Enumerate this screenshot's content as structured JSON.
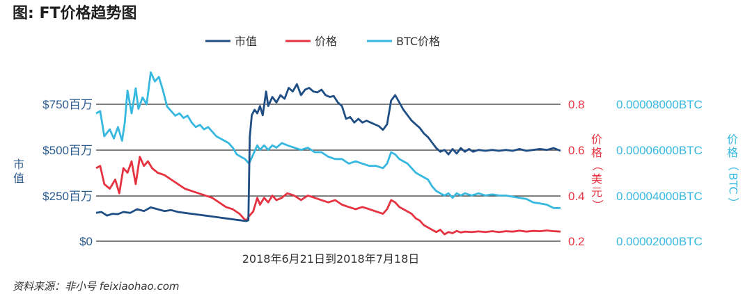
{
  "chart_data": {
    "type": "line",
    "title": "图: FT价格趋势图",
    "xlabel": "2018年6月21日到2018年7月18日",
    "x_range": [
      "2018-06-21",
      "2018-07-18"
    ],
    "grid": true,
    "legend_position": "top",
    "axes": {
      "left": {
        "label": "市值",
        "ylim": [
          0,
          750
        ],
        "ticks": [
          0,
          250,
          500,
          750
        ],
        "tick_labels": [
          "$0",
          "$250百万",
          "$500百万",
          "$750百万"
        ],
        "color": "#2b5c8f"
      },
      "middle": {
        "label": "价格（美元）",
        "label_chars": [
          "价",
          "格",
          "（",
          "美",
          "元",
          "）"
        ],
        "ylim": [
          0.2,
          0.8
        ],
        "ticks": [
          0.2,
          0.4,
          0.6,
          0.8
        ],
        "tick_labels": [
          "0.2",
          "0.4",
          "0.6",
          "0.8"
        ],
        "color": "#e63341"
      },
      "right": {
        "label": "价格（BTC）",
        "label_chars": [
          "价",
          "格",
          "（",
          "BTC",
          "）"
        ],
        "ylim": [
          2e-05,
          8e-05
        ],
        "ticks": [
          2e-05,
          4e-05,
          6e-05,
          8e-05
        ],
        "tick_labels": [
          "0.00002000BTC",
          "0.00004000BTC",
          "0.00006000BTC",
          "0.00008000BTC"
        ],
        "color": "#37b8e0"
      }
    },
    "series": [
      {
        "name": "市值",
        "axis": "left",
        "color": "#1f4e85",
        "points": [
          [
            0,
            155
          ],
          [
            0.4,
            160
          ],
          [
            0.8,
            140
          ],
          [
            1.2,
            150
          ],
          [
            1.6,
            148
          ],
          [
            2.0,
            160
          ],
          [
            2.5,
            155
          ],
          [
            3.0,
            175
          ],
          [
            3.5,
            165
          ],
          [
            4.0,
            185
          ],
          [
            4.5,
            175
          ],
          [
            5.0,
            165
          ],
          [
            5.5,
            170
          ],
          [
            6.0,
            160
          ],
          [
            6.5,
            155
          ],
          [
            7.0,
            150
          ],
          [
            7.5,
            145
          ],
          [
            8.0,
            140
          ],
          [
            8.5,
            135
          ],
          [
            9.0,
            130
          ],
          [
            9.5,
            125
          ],
          [
            10.0,
            120
          ],
          [
            10.5,
            115
          ],
          [
            11.0,
            110
          ],
          [
            11.15,
            115
          ],
          [
            11.25,
            570
          ],
          [
            11.4,
            690
          ],
          [
            11.6,
            720
          ],
          [
            11.8,
            700
          ],
          [
            12.0,
            740
          ],
          [
            12.2,
            690
          ],
          [
            12.45,
            820
          ],
          [
            12.6,
            740
          ],
          [
            12.9,
            790
          ],
          [
            13.2,
            760
          ],
          [
            13.5,
            800
          ],
          [
            13.8,
            780
          ],
          [
            14.1,
            840
          ],
          [
            14.4,
            820
          ],
          [
            14.7,
            860
          ],
          [
            15.0,
            800
          ],
          [
            15.3,
            830
          ],
          [
            15.6,
            840
          ],
          [
            15.9,
            820
          ],
          [
            16.2,
            815
          ],
          [
            16.5,
            830
          ],
          [
            16.8,
            800
          ],
          [
            17.1,
            790
          ],
          [
            17.4,
            795
          ],
          [
            17.7,
            760
          ],
          [
            18.0,
            740
          ],
          [
            18.3,
            670
          ],
          [
            18.6,
            680
          ],
          [
            18.9,
            650
          ],
          [
            19.2,
            670
          ],
          [
            19.5,
            650
          ],
          [
            19.8,
            660
          ],
          [
            20.1,
            650
          ],
          [
            20.4,
            640
          ],
          [
            20.7,
            630
          ],
          [
            21.0,
            610
          ],
          [
            21.3,
            640
          ],
          [
            21.6,
            770
          ],
          [
            21.9,
            800
          ],
          [
            22.2,
            760
          ],
          [
            22.5,
            720
          ],
          [
            22.8,
            690
          ],
          [
            23.1,
            660
          ],
          [
            23.4,
            640
          ],
          [
            23.7,
            620
          ],
          [
            24.0,
            590
          ],
          [
            24.3,
            570
          ],
          [
            24.6,
            540
          ],
          [
            24.9,
            510
          ],
          [
            25.2,
            490
          ],
          [
            25.5,
            500
          ],
          [
            25.8,
            475
          ],
          [
            26.1,
            505
          ],
          [
            26.4,
            480
          ],
          [
            26.7,
            510
          ],
          [
            27.0,
            490
          ],
          [
            27.3,
            505
          ],
          [
            27.6,
            490
          ],
          [
            28.0,
            500
          ],
          [
            28.5,
            495
          ],
          [
            29.0,
            500
          ],
          [
            29.5,
            495
          ],
          [
            30.0,
            500
          ],
          [
            30.5,
            495
          ],
          [
            31.0,
            505
          ],
          [
            31.5,
            495
          ],
          [
            32.0,
            500
          ],
          [
            32.5,
            505
          ],
          [
            33.0,
            500
          ],
          [
            33.5,
            510
          ],
          [
            34.0,
            495
          ]
        ]
      },
      {
        "name": "价格",
        "axis": "middle",
        "color": "#e63341",
        "points": [
          [
            0,
            0.52
          ],
          [
            0.3,
            0.53
          ],
          [
            0.6,
            0.45
          ],
          [
            1.0,
            0.43
          ],
          [
            1.4,
            0.47
          ],
          [
            1.7,
            0.41
          ],
          [
            2.0,
            0.52
          ],
          [
            2.3,
            0.5
          ],
          [
            2.6,
            0.55
          ],
          [
            2.9,
            0.45
          ],
          [
            3.2,
            0.57
          ],
          [
            3.5,
            0.53
          ],
          [
            3.8,
            0.55
          ],
          [
            4.1,
            0.52
          ],
          [
            4.5,
            0.5
          ],
          [
            5.0,
            0.49
          ],
          [
            5.5,
            0.47
          ],
          [
            6.0,
            0.45
          ],
          [
            6.5,
            0.43
          ],
          [
            7.0,
            0.42
          ],
          [
            7.5,
            0.41
          ],
          [
            8.0,
            0.4
          ],
          [
            8.5,
            0.39
          ],
          [
            9.0,
            0.37
          ],
          [
            9.5,
            0.35
          ],
          [
            10.0,
            0.34
          ],
          [
            10.5,
            0.32
          ],
          [
            10.8,
            0.3
          ],
          [
            11.0,
            0.29
          ],
          [
            11.2,
            0.31
          ],
          [
            11.5,
            0.33
          ],
          [
            11.8,
            0.39
          ],
          [
            12.0,
            0.36
          ],
          [
            12.3,
            0.39
          ],
          [
            12.6,
            0.37
          ],
          [
            12.9,
            0.4
          ],
          [
            13.2,
            0.38
          ],
          [
            13.6,
            0.39
          ],
          [
            14.0,
            0.41
          ],
          [
            14.5,
            0.4
          ],
          [
            15.0,
            0.38
          ],
          [
            15.5,
            0.4
          ],
          [
            16.0,
            0.39
          ],
          [
            16.5,
            0.38
          ],
          [
            17.0,
            0.37
          ],
          [
            17.5,
            0.38
          ],
          [
            18.0,
            0.36
          ],
          [
            18.5,
            0.35
          ],
          [
            19.0,
            0.34
          ],
          [
            19.5,
            0.35
          ],
          [
            20.0,
            0.34
          ],
          [
            20.5,
            0.33
          ],
          [
            21.0,
            0.32
          ],
          [
            21.3,
            0.34
          ],
          [
            21.6,
            0.38
          ],
          [
            21.9,
            0.37
          ],
          [
            22.2,
            0.35
          ],
          [
            22.5,
            0.34
          ],
          [
            22.8,
            0.33
          ],
          [
            23.1,
            0.32
          ],
          [
            23.4,
            0.3
          ],
          [
            23.7,
            0.29
          ],
          [
            24.0,
            0.27
          ],
          [
            24.3,
            0.26
          ],
          [
            24.6,
            0.25
          ],
          [
            24.9,
            0.24
          ],
          [
            25.2,
            0.25
          ],
          [
            25.5,
            0.23
          ],
          [
            25.8,
            0.24
          ],
          [
            26.1,
            0.235
          ],
          [
            26.4,
            0.245
          ],
          [
            26.7,
            0.238
          ],
          [
            27.0,
            0.242
          ],
          [
            27.5,
            0.24
          ],
          [
            28.0,
            0.243
          ],
          [
            28.5,
            0.24
          ],
          [
            29.0,
            0.244
          ],
          [
            29.5,
            0.24
          ],
          [
            30.0,
            0.244
          ],
          [
            30.5,
            0.242
          ],
          [
            31.0,
            0.246
          ],
          [
            31.5,
            0.242
          ],
          [
            32.0,
            0.245
          ],
          [
            32.5,
            0.244
          ],
          [
            33.0,
            0.247
          ],
          [
            33.5,
            0.244
          ],
          [
            34.0,
            0.242
          ]
        ]
      },
      {
        "name": "BTC价格",
        "axis": "right",
        "color": "#37b8e0",
        "points": [
          [
            0,
            7.6e-05
          ],
          [
            0.3,
            7.7e-05
          ],
          [
            0.6,
            6.6e-05
          ],
          [
            1.0,
            6.9e-05
          ],
          [
            1.3,
            6.5e-05
          ],
          [
            1.6,
            7e-05
          ],
          [
            1.9,
            6.4e-05
          ],
          [
            2.1,
            7.2e-05
          ],
          [
            2.3,
            8.6e-05
          ],
          [
            2.6,
            7.6e-05
          ],
          [
            2.9,
            8.7e-05
          ],
          [
            3.1,
            7.8e-05
          ],
          [
            3.4,
            8.3e-05
          ],
          [
            3.7,
            8e-05
          ],
          [
            4.0,
            9.4e-05
          ],
          [
            4.3,
            9e-05
          ],
          [
            4.6,
            9.2e-05
          ],
          [
            4.9,
            8.6e-05
          ],
          [
            5.2,
            7.9e-05
          ],
          [
            5.5,
            7.7e-05
          ],
          [
            5.8,
            7.5e-05
          ],
          [
            6.1,
            7.6e-05
          ],
          [
            6.4,
            7.4e-05
          ],
          [
            6.7,
            7.5e-05
          ],
          [
            7.0,
            7.2e-05
          ],
          [
            7.3,
            7e-05
          ],
          [
            7.6,
            7.1e-05
          ],
          [
            7.9,
            6.9e-05
          ],
          [
            8.2,
            7e-05
          ],
          [
            8.5,
            6.8e-05
          ],
          [
            8.8,
            6.6e-05
          ],
          [
            9.1,
            6.5e-05
          ],
          [
            9.4,
            6.4e-05
          ],
          [
            9.7,
            6.3e-05
          ],
          [
            10.0,
            6.1e-05
          ],
          [
            10.3,
            5.8e-05
          ],
          [
            10.6,
            5.7e-05
          ],
          [
            10.9,
            5.6e-05
          ],
          [
            11.2,
            5.4e-05
          ],
          [
            11.5,
            5.8e-05
          ],
          [
            11.8,
            6.2e-05
          ],
          [
            12.0,
            6e-05
          ],
          [
            12.3,
            6.2e-05
          ],
          [
            12.6,
            6e-05
          ],
          [
            12.9,
            6.2e-05
          ],
          [
            13.2,
            6.1e-05
          ],
          [
            13.6,
            6.3e-05
          ],
          [
            14.0,
            6.2e-05
          ],
          [
            14.5,
            6.1e-05
          ],
          [
            15.0,
            6e-05
          ],
          [
            15.5,
            6.1e-05
          ],
          [
            16.0,
            5.9e-05
          ],
          [
            16.5,
            5.9e-05
          ],
          [
            17.0,
            5.7e-05
          ],
          [
            17.5,
            5.6e-05
          ],
          [
            18.0,
            5.6e-05
          ],
          [
            18.5,
            5.4e-05
          ],
          [
            19.0,
            5.5e-05
          ],
          [
            19.5,
            5.4e-05
          ],
          [
            20.0,
            5.3e-05
          ],
          [
            20.5,
            5.3e-05
          ],
          [
            21.0,
            5.2e-05
          ],
          [
            21.3,
            5.4e-05
          ],
          [
            21.6,
            5.9e-05
          ],
          [
            21.9,
            5.8e-05
          ],
          [
            22.2,
            5.6e-05
          ],
          [
            22.5,
            5.5e-05
          ],
          [
            22.8,
            5.4e-05
          ],
          [
            23.1,
            5.2e-05
          ],
          [
            23.4,
            5e-05
          ],
          [
            23.7,
            4.9e-05
          ],
          [
            24.0,
            4.8e-05
          ],
          [
            24.3,
            4.7e-05
          ],
          [
            24.6,
            4.4e-05
          ],
          [
            24.9,
            4.2e-05
          ],
          [
            25.2,
            4.1e-05
          ],
          [
            25.5,
            4e-05
          ],
          [
            25.8,
            4.1e-05
          ],
          [
            26.1,
            3.9e-05
          ],
          [
            26.4,
            4.1e-05
          ],
          [
            26.7,
            4e-05
          ],
          [
            27.0,
            4.1e-05
          ],
          [
            27.5,
            4e-05
          ],
          [
            28.0,
            4.1e-05
          ],
          [
            28.5,
            4e-05
          ],
          [
            29.0,
            4.05e-05
          ],
          [
            29.5,
            4e-05
          ],
          [
            30.0,
            4e-05
          ],
          [
            30.5,
            3.95e-05
          ],
          [
            31.0,
            3.9e-05
          ],
          [
            31.5,
            3.85e-05
          ],
          [
            32.0,
            3.7e-05
          ],
          [
            32.5,
            3.65e-05
          ],
          [
            33.0,
            3.6e-05
          ],
          [
            33.5,
            3.45e-05
          ],
          [
            34.0,
            3.45e-05
          ]
        ]
      }
    ],
    "legend": [
      "市值",
      "价格",
      "BTC价格"
    ]
  },
  "source_note": "资料来源：非小号 feixiaohao.com"
}
